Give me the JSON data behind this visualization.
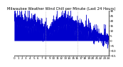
{
  "title": "Milwaukee Weather Wind Chill per Minute (Last 24 Hours)",
  "title_fontsize": 3.8,
  "line_color": "#0000cc",
  "bg_color": "#ffffff",
  "plot_bg_color": "#ffffff",
  "grid_color": "#aaaaaa",
  "y_label_color": "#000000",
  "ylim": [
    -15,
    30
  ],
  "yticks": [
    30,
    25,
    20,
    15,
    10,
    5,
    0,
    -5,
    -10,
    -15
  ],
  "num_points": 1440,
  "fill_color": "#0000cc",
  "fill_alpha": 1.0,
  "linewidth": 0.3,
  "tick_fontsize": 3.0
}
